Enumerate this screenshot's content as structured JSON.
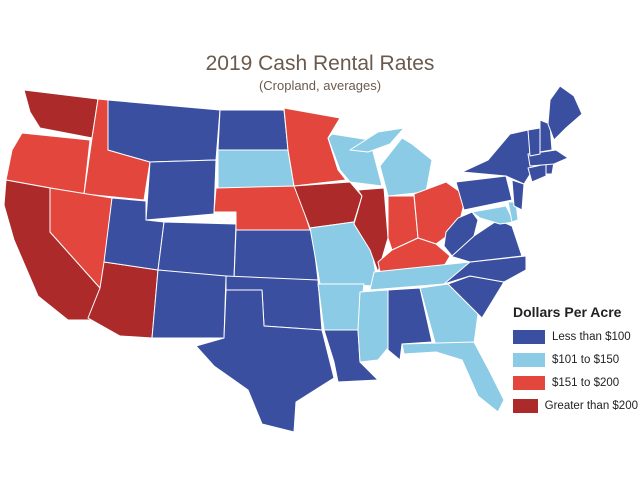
{
  "map": {
    "title": "2019 Cash Rental Rates",
    "subtitle": "(Cropland, averages)"
  },
  "colors": {
    "tier1": "#3b4fa0",
    "tier2": "#8ccbe6",
    "tier3": "#e2463d",
    "tier4": "#ad2a2b"
  },
  "legend": {
    "title": "Dollars Per Acre",
    "items": [
      {
        "label": "Less than $100",
        "color": "#3b4fa0"
      },
      {
        "label": "$101 to $150",
        "color": "#8ccbe6"
      },
      {
        "label": "$151 to $200",
        "color": "#e2463d"
      },
      {
        "label": "Greater than $200",
        "color": "#ad2a2b"
      }
    ]
  },
  "chart_data": {
    "type": "choropleth",
    "title": "2019 Cash Rental Rates",
    "subtitle": "(Cropland, averages)",
    "legend_title": "Dollars Per Acre",
    "categories": [
      "Less than $100",
      "$101 to $150",
      "$151 to $200",
      "Greater than $200"
    ],
    "states": {
      "WA": "Greater than $200",
      "OR": "$151 to $200",
      "CA": "Greater than $200",
      "ID": "$151 to $200",
      "NV": "$151 to $200",
      "AZ": "Greater than $200",
      "MT": "Less than $100",
      "WY": "Less than $100",
      "UT": "Less than $100",
      "CO": "Less than $100",
      "NM": "Less than $100",
      "ND": "Less than $100",
      "SD": "$101 to $150",
      "NE": "$151 to $200",
      "KS": "Less than $100",
      "OK": "Less than $100",
      "TX": "Less than $100",
      "MN": "$151 to $200",
      "IA": "Greater than $200",
      "MO": "$101 to $150",
      "AR": "$101 to $150",
      "LA": "Less than $100",
      "WI": "$101 to $150",
      "IL": "Greater than $200",
      "MI": "$101 to $150",
      "IN": "$151 to $200",
      "OH": "$151 to $200",
      "KY": "$151 to $200",
      "TN": "$101 to $150",
      "MS": "$101 to $150",
      "AL": "Less than $100",
      "GA": "$101 to $150",
      "FL": "$101 to $150",
      "SC": "Less than $100",
      "NC": "Less than $100",
      "VA": "Less than $100",
      "WV": "Less than $100",
      "MD": "$101 to $150",
      "DE": "$101 to $150",
      "PA": "Less than $100",
      "NY": "Less than $100",
      "NJ": "Less than $100",
      "CT": "Less than $100",
      "RI": "Less than $100",
      "MA": "Less than $100",
      "VT": "Less than $100",
      "NH": "Less than $100",
      "ME": "Less than $100"
    }
  }
}
